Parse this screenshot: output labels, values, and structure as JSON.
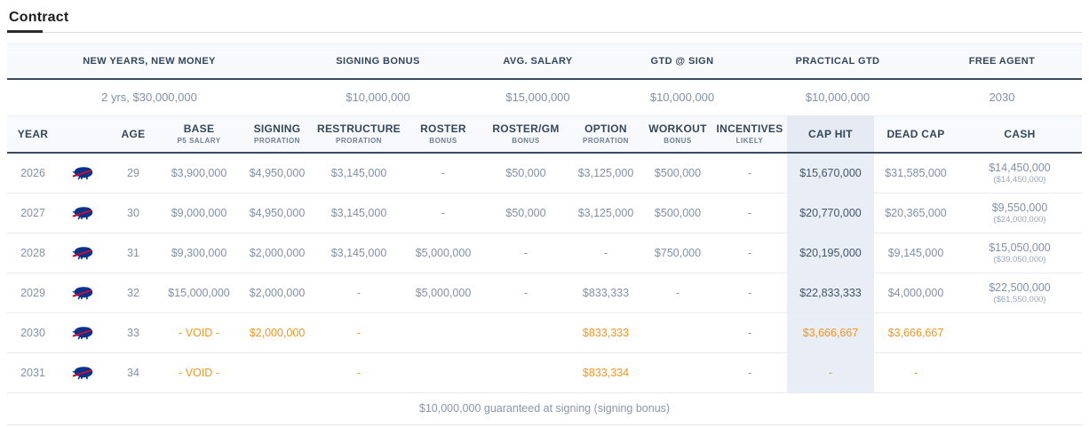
{
  "title": "Contract",
  "colors": {
    "accent_orange": "#f7941e",
    "header_navy": "#33475b",
    "muted_text": "#8290aa",
    "cap_hit_column_bg": "#e9edf5",
    "header_row_bg": "#f7f9fc",
    "dark_border": "#3b4a5f",
    "bills_blue": "#00338d",
    "bills_red": "#c60c30"
  },
  "summary": {
    "columns": [
      {
        "label": "NEW YEARS, NEW MONEY",
        "value": "2 yrs, $30,000,000"
      },
      {
        "label": "SIGNING BONUS",
        "value": "$10,000,000"
      },
      {
        "label": "AVG. SALARY",
        "value": "$15,000,000"
      },
      {
        "label": "GTD @ SIGN",
        "value": "$10,000,000"
      },
      {
        "label": "PRACTICAL GTD",
        "value": "$10,000,000"
      },
      {
        "label": "FREE AGENT",
        "value": "2030"
      }
    ]
  },
  "table": {
    "team_logo": "buffalo-bills",
    "columns": [
      {
        "key": "year",
        "label": "YEAR",
        "sub": ""
      },
      {
        "key": "team",
        "label": "",
        "sub": ""
      },
      {
        "key": "age",
        "label": "AGE",
        "sub": ""
      },
      {
        "key": "base",
        "label": "BASE",
        "sub": "P5 SALARY"
      },
      {
        "key": "signing",
        "label": "SIGNING",
        "sub": "PRORATION"
      },
      {
        "key": "restructure",
        "label": "RESTRUCTURE",
        "sub": "PRORATION"
      },
      {
        "key": "roster",
        "label": "ROSTER",
        "sub": "BONUS"
      },
      {
        "key": "roster_gm",
        "label": "ROSTER/GM",
        "sub": "BONUS"
      },
      {
        "key": "option",
        "label": "OPTION",
        "sub": "PRORATION"
      },
      {
        "key": "workout",
        "label": "WORKOUT",
        "sub": "BONUS"
      },
      {
        "key": "incentives",
        "label": "INCENTIVES",
        "sub": "LIKELY"
      },
      {
        "key": "cap_hit",
        "label": "CAP HIT",
        "sub": ""
      },
      {
        "key": "dead_cap",
        "label": "DEAD CAP",
        "sub": ""
      },
      {
        "key": "cash",
        "label": "CASH",
        "sub": ""
      }
    ],
    "rows": [
      {
        "year": "2026",
        "age": "29",
        "base": "$3,900,000",
        "signing": "$4,950,000",
        "restructure": "$3,145,000",
        "roster": "-",
        "roster_gm": "$50,000",
        "option": "$3,125,000",
        "workout": "$500,000",
        "incentives": "-",
        "cap_hit": "$15,670,000",
        "dead_cap": "$31,585,000",
        "cash": "$14,450,000",
        "cash_sub": "($14,450,000)",
        "orange": []
      },
      {
        "year": "2027",
        "age": "30",
        "base": "$9,000,000",
        "signing": "$4,950,000",
        "restructure": "$3,145,000",
        "roster": "-",
        "roster_gm": "$50,000",
        "option": "$3,125,000",
        "workout": "$500,000",
        "incentives": "-",
        "cap_hit": "$20,770,000",
        "dead_cap": "$20,365,000",
        "cash": "$9,550,000",
        "cash_sub": "($24,000,000)",
        "orange": []
      },
      {
        "year": "2028",
        "age": "31",
        "base": "$9,300,000",
        "signing": "$2,000,000",
        "restructure": "$3,145,000",
        "roster": "$5,000,000",
        "roster_gm": "-",
        "option": "-",
        "workout": "$750,000",
        "incentives": "-",
        "cap_hit": "$20,195,000",
        "dead_cap": "$9,145,000",
        "cash": "$15,050,000",
        "cash_sub": "($39,050,000)",
        "orange": []
      },
      {
        "year": "2029",
        "age": "32",
        "base": "$15,000,000",
        "signing": "$2,000,000",
        "restructure": "-",
        "roster": "$5,000,000",
        "roster_gm": "-",
        "option": "$833,333",
        "workout": "-",
        "incentives": "-",
        "cap_hit": "$22,833,333",
        "dead_cap": "$4,000,000",
        "cash": "$22,500,000",
        "cash_sub": "($61,550,000)",
        "orange": []
      },
      {
        "year": "2030",
        "age": "33",
        "base": "- VOID -",
        "signing": "$2,000,000",
        "restructure": "-",
        "roster": "",
        "roster_gm": "",
        "option": "$833,333",
        "workout": "",
        "incentives": "-",
        "cap_hit": "$3,666,667",
        "dead_cap": "$3,666,667",
        "cash": "",
        "cash_sub": "",
        "orange": [
          "base",
          "signing",
          "restructure",
          "option",
          "cap_hit",
          "dead_cap"
        ]
      },
      {
        "year": "2031",
        "age": "34",
        "base": "- VOID -",
        "signing": "",
        "restructure": "-",
        "roster": "",
        "roster_gm": "",
        "option": "$833,334",
        "workout": "",
        "incentives": "-",
        "cap_hit": "-",
        "dead_cap": "-",
        "cash": "",
        "cash_sub": "",
        "orange": [
          "base",
          "restructure",
          "option",
          "cap_hit",
          "dead_cap"
        ]
      }
    ]
  },
  "footer_note": "$10,000,000 guaranteed at signing (signing bonus)"
}
